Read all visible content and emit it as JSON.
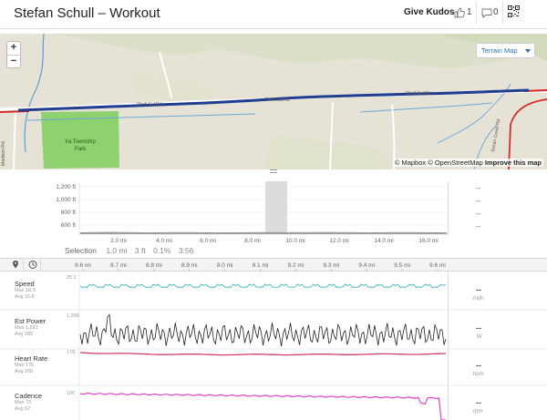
{
  "header": {
    "title": "Stefan Schull – Workout",
    "give_kudos": "Give Kudos",
    "kudos_count": "1",
    "comment_count": "0",
    "icons": [
      "thumbs-up-icon",
      "comment-icon",
      "qr-code-icon"
    ]
  },
  "map": {
    "zoom_in": "+",
    "zoom_out": "−",
    "layer_button": "Terrain Map",
    "attribution": "© Mapbox © OpenStreetMap",
    "improve_link": "Improve this map",
    "labels": {
      "road_a": "Shell Sul Rd",
      "road_b": "Shell Sul Rd",
      "road_c": "Shell Sul Rd",
      "road_left": "Sul Rd",
      "road_madison": "Madison Rd",
      "road_susan": "Susan Creek Rd",
      "park": [
        "Ira Township",
        "Park"
      ]
    }
  },
  "elevation": {
    "y_ticks": [
      "1,200 ft",
      "1,000 ft",
      "800 ft",
      "600 ft"
    ],
    "x_ticks": [
      "2.0 mi",
      "4.0 mi",
      "6.0 mi",
      "8.0 mi",
      "10.0 mi",
      "12.0 mi",
      "14.0 mi",
      "16.0 mi"
    ],
    "right_values": [
      "--",
      "--",
      "--",
      "--"
    ]
  },
  "selection": {
    "label": "Selection",
    "distance": "1.0 mi",
    "elevation": "3 ft",
    "grade": "0.1%",
    "time": "3:56"
  },
  "streams": {
    "x_ticks": [
      "8.6 mi",
      "8.7 mi",
      "8.8 mi",
      "8.9 mi",
      "9.0 mi",
      "9.1 mi",
      "9.2 mi",
      "9.3 mi",
      "9.4 mi",
      "9.5 mi",
      "9.6 mi"
    ],
    "toolbar_icons": [
      "map-pin-icon",
      "clock-icon"
    ],
    "rows": [
      {
        "name": "Speed",
        "max": "Max 18.3",
        "avg": "Avg 15.8",
        "axis_top": "25.1",
        "value": "--",
        "unit": "mi/h",
        "color": "#3fb4c0"
      },
      {
        "name": "Est Power",
        "max": "Max 1,281",
        "avg": "Avg 282",
        "axis_top": "1,295",
        "value": "--",
        "unit": "W",
        "color": "#222222"
      },
      {
        "name": "Heart Rate",
        "max": "Max 176",
        "avg": "Avg 166",
        "axis_top": "178",
        "value": "--",
        "unit": "bpm",
        "color": "#d23c6e"
      },
      {
        "name": "Cadence",
        "max": "Max 73",
        "avg": "Avg 62",
        "axis_top": "100",
        "value": "--",
        "unit": "rpm",
        "color": "#e040c8"
      }
    ]
  },
  "colors": {
    "route": "#1f3d91",
    "park": "#8fd16f",
    "map_bg": "#e7e2d6",
    "water": "#5aa0d6",
    "road_red": "#d42a2a"
  }
}
